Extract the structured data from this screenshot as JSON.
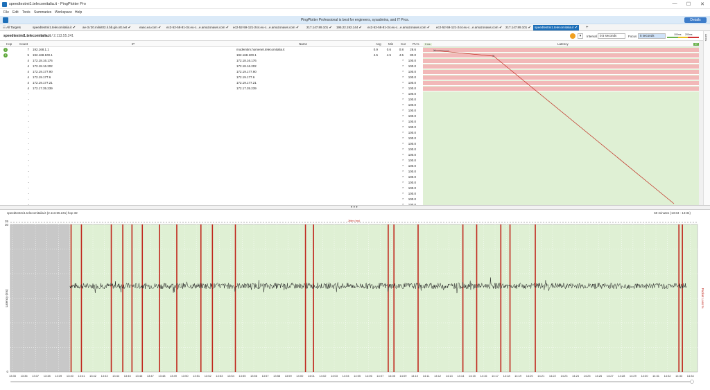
{
  "window": {
    "title": "speedtestmi1.telecomitalia.it - PingPlotter Pro",
    "minimize": "—",
    "maximize": "☐",
    "close": "✕"
  },
  "menu": [
    "File",
    "Edit",
    "Tools",
    "Summaries",
    "Workspace",
    "Help"
  ],
  "banner": {
    "text": "PingPlotter Professional is best for engineers, sysadmins, and IT Pros.",
    "button": "Details"
  },
  "tabs": {
    "all_label": "All Targets",
    "items": [
      {
        "label": "speedtestmi1.telecomitalia.it",
        "checked": true
      },
      {
        "label": "ae-3.r20.milnit02.it.bb.gin.ntt.net",
        "checked": true
      },
      {
        "label": "easo.ea.com",
        "checked": true
      },
      {
        "label": "ec2-52-58-81-34.eu-c...e.amazonaws.com",
        "checked": true
      },
      {
        "label": "ec2-52-59-121-244.eu-c...e.amazonaws.com",
        "checked": true
      },
      {
        "label": "217.147.89.101",
        "checked": true
      },
      {
        "label": "195.22.192.144",
        "checked": true
      },
      {
        "label": "ec2-52-58-81-34.eu-c...e.amazonaws.com",
        "checked": true
      },
      {
        "label": "ec2-52-59-121-244.eu-c...e.amazonaws.com",
        "checked": true
      },
      {
        "label": "217.147.89.101",
        "checked": true
      },
      {
        "label": "speedtestmi1.telecomitalia.it",
        "checked": true,
        "active": true
      }
    ],
    "add": "+"
  },
  "target": {
    "name": "speedtestmi1.telecomitalia.it",
    "ip": "/ 2.113.55.241"
  },
  "controls": {
    "interval_label": "Interval",
    "interval_value": "0.5 seconds",
    "focus_label": "Focus",
    "focus_value": "5 seconds",
    "scale_100": "100ms",
    "scale_200": "200ms",
    "alerts": "Alerts"
  },
  "columns": {
    "hop": "Hop",
    "count": "Count",
    "ip": "IP",
    "name": "Name",
    "avg": "Avg",
    "min": "Min",
    "cur": "Cur",
    "pl": "PL%",
    "latency": "Latency",
    "zero_ms": "0 ms",
    "right_badge": "17"
  },
  "hops": [
    {
      "hop": "1",
      "count": "7",
      "ip": "192.168.1.1",
      "name": "modemtim.homenet.telecomitalia.it",
      "avg": "0.9",
      "min": "0.6",
      "cur": "0.8",
      "pl": "28.6",
      "status": "ok"
    },
    {
      "hop": "2",
      "count": "5",
      "ip": "192.168.100.1",
      "name": "192.168.100.1",
      "avg": "4.5",
      "min": "4.5",
      "cur": "4.5",
      "pl": "80.0",
      "status": "ok"
    },
    {
      "hop": "",
      "count": "4",
      "ip": "172.18.16.176",
      "name": "172.18.16.176",
      "avg": "",
      "min": "",
      "cur": "*",
      "pl": "100.0"
    },
    {
      "hop": "",
      "count": "4",
      "ip": "172.18.16.202",
      "name": "172.18.16.202",
      "avg": "",
      "min": "",
      "cur": "*",
      "pl": "100.0"
    },
    {
      "hop": "",
      "count": "4",
      "ip": "172.19.177.90",
      "name": "172.19.177.90",
      "avg": "",
      "min": "",
      "cur": "*",
      "pl": "100.0"
    },
    {
      "hop": "",
      "count": "4",
      "ip": "172.19.177.6",
      "name": "172.19.177.6",
      "avg": "",
      "min": "",
      "cur": "*",
      "pl": "100.0"
    },
    {
      "hop": "",
      "count": "4",
      "ip": "172.19.177.21",
      "name": "172.19.177.21",
      "avg": "",
      "min": "",
      "cur": "*",
      "pl": "100.0"
    },
    {
      "hop": "",
      "count": "4",
      "ip": "172.17.35.239",
      "name": "172.17.35.239",
      "avg": "",
      "min": "",
      "cur": "*",
      "pl": "100.0"
    },
    {
      "hop": "",
      "count": "-",
      "ip": "",
      "name": "",
      "avg": "",
      "min": "",
      "cur": "*",
      "pl": "100.0"
    },
    {
      "hop": "",
      "count": "-",
      "ip": "",
      "name": "",
      "avg": "",
      "min": "",
      "cur": "*",
      "pl": "100.0"
    },
    {
      "hop": "",
      "count": "-",
      "ip": "",
      "name": "",
      "avg": "",
      "min": "",
      "cur": "*",
      "pl": "100.0"
    },
    {
      "hop": "",
      "count": "-",
      "ip": "",
      "name": "",
      "avg": "",
      "min": "",
      "cur": "*",
      "pl": "100.0"
    },
    {
      "hop": "",
      "count": "-",
      "ip": "",
      "name": "",
      "avg": "",
      "min": "",
      "cur": "*",
      "pl": "100.0"
    },
    {
      "hop": "",
      "count": "-",
      "ip": "",
      "name": "",
      "avg": "",
      "min": "",
      "cur": "*",
      "pl": "100.0"
    },
    {
      "hop": "",
      "count": "-",
      "ip": "",
      "name": "",
      "avg": "",
      "min": "",
      "cur": "*",
      "pl": "100.0"
    },
    {
      "hop": "",
      "count": "-",
      "ip": "",
      "name": "",
      "avg": "",
      "min": "",
      "cur": "*",
      "pl": "100.0"
    },
    {
      "hop": "",
      "count": "-",
      "ip": "",
      "name": "",
      "avg": "",
      "min": "",
      "cur": "*",
      "pl": "100.0"
    },
    {
      "hop": "",
      "count": "-",
      "ip": "",
      "name": "",
      "avg": "",
      "min": "",
      "cur": "*",
      "pl": "100.0"
    },
    {
      "hop": "",
      "count": "-",
      "ip": "",
      "name": "",
      "avg": "",
      "min": "",
      "cur": "*",
      "pl": "100.0"
    },
    {
      "hop": "",
      "count": "-",
      "ip": "",
      "name": "",
      "avg": "",
      "min": "",
      "cur": "*",
      "pl": "100.0"
    },
    {
      "hop": "",
      "count": "-",
      "ip": "",
      "name": "",
      "avg": "",
      "min": "",
      "cur": "*",
      "pl": "100.0"
    },
    {
      "hop": "",
      "count": "-",
      "ip": "",
      "name": "",
      "avg": "",
      "min": "",
      "cur": "*",
      "pl": "100.0"
    },
    {
      "hop": "",
      "count": "-",
      "ip": "",
      "name": "",
      "avg": "",
      "min": "",
      "cur": "*",
      "pl": "100.0"
    },
    {
      "hop": "",
      "count": "-",
      "ip": "",
      "name": "",
      "avg": "",
      "min": "",
      "cur": "*",
      "pl": "100.0"
    },
    {
      "hop": "",
      "count": "-",
      "ip": "",
      "name": "",
      "avg": "",
      "min": "",
      "cur": "*",
      "pl": "100.0"
    },
    {
      "hop": "",
      "count": "-",
      "ip": "",
      "name": "",
      "avg": "",
      "min": "",
      "cur": "*",
      "pl": "100.0"
    },
    {
      "hop": "",
      "count": "-",
      "ip": "",
      "name": "",
      "avg": "",
      "min": "",
      "cur": "*",
      "pl": "100.0"
    },
    {
      "hop": "",
      "count": "-",
      "ip": "",
      "name": "",
      "avg": "",
      "min": "",
      "cur": "*",
      "pl": "100.0"
    },
    {
      "hop": "",
      "count": "-",
      "ip": "",
      "name": "",
      "avg": "",
      "min": "",
      "cur": "*",
      "pl": "100.0"
    }
  ],
  "splitter": "• • •",
  "graph": {
    "left_label": "speedtestmi1.telecomitalia.it (2.113.55.241) hop 32",
    "right_label": "60 minutes (13:34 - 14:34)",
    "jitter_label": "Jitter (ms)"
  },
  "colors": {
    "loss": "#c0281e",
    "ok_bg": "#dff0d4",
    "bad_bg": "#f2b8b8",
    "accent": "#1d6fb8"
  },
  "chart_data": {
    "type": "line",
    "title": "",
    "ylabel": "Latency (ms)",
    "y2label": "Packet Loss %",
    "ylim": [
      0,
      30
    ],
    "y_ticks": [
      "0",
      "30"
    ],
    "ymax_label": "35",
    "x_ticks": [
      "13:35",
      "13:36",
      "13:37",
      "13:38",
      "13:39",
      "13:40",
      "13:41",
      "13:42",
      "13:43",
      "13:44",
      "13:45",
      "13:46",
      "13:47",
      "13:48",
      "13:49",
      "13:50",
      "13:51",
      "13:52",
      "13:53",
      "13:54",
      "13:55",
      "13:56",
      "13:57",
      "13:58",
      "13:59",
      "14:00",
      "14:01",
      "14:02",
      "14:03",
      "14:04",
      "14:05",
      "14:06",
      "14:07",
      "14:08",
      "14:09",
      "14:10",
      "14:11",
      "14:12",
      "14:13",
      "14:14",
      "14:15",
      "14:16",
      "14:17",
      "14:18",
      "14:19",
      "14:20",
      "14:21",
      "14:22",
      "14:23",
      "14:24",
      "14:25",
      "14:26",
      "14:27",
      "14:28",
      "14:29",
      "14:30",
      "14:31",
      "14:32",
      "14:33",
      "14:34"
    ],
    "no_data_until_minute": 5,
    "latency_level": 17.5,
    "loss_minutes": [
      5.1,
      6.0,
      8.6,
      9.6,
      10.4,
      11.3,
      12.8,
      14.3,
      16.4,
      17.4,
      19.4,
      25.5,
      26.2,
      32.7,
      33.2,
      35.3,
      39.2,
      40.4,
      42.5,
      43.3,
      45.5,
      58.0,
      58.3
    ]
  }
}
